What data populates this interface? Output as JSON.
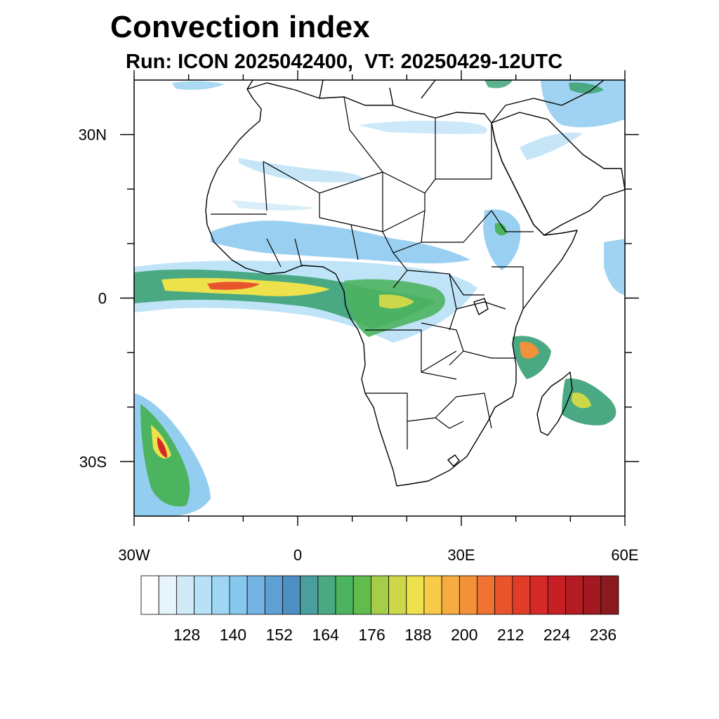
{
  "title": "Convection index",
  "subtitle": "Run: ICON 2025042400,  VT: 20250429-12UTC",
  "map": {
    "region": "Africa",
    "lon_range": [
      -30,
      60
    ],
    "lat_range": [
      -40,
      40
    ],
    "x_ticks": [
      {
        "lon": -30,
        "label": "30W"
      },
      {
        "lon": 0,
        "label": "0"
      },
      {
        "lon": 30,
        "label": "30E"
      },
      {
        "lon": 60,
        "label": "60E"
      }
    ],
    "y_ticks": [
      {
        "lat": 30,
        "label": "30N"
      },
      {
        "lat": 0,
        "label": "0"
      },
      {
        "lat": -30,
        "label": "30S"
      }
    ]
  },
  "colorbar": {
    "colors": [
      "#ffffff",
      "#e8f4fb",
      "#d0eaf8",
      "#b8e0f6",
      "#9fd6f4",
      "#87c8ee",
      "#73b4e2",
      "#5f9fd3",
      "#4f90c4",
      "#4a9ea0",
      "#4aa982",
      "#4cb35f",
      "#61bb4d",
      "#a5cd4a",
      "#ccd84a",
      "#eee24c",
      "#f8cb4a",
      "#f5ad41",
      "#f3903a",
      "#ef7233",
      "#e8552d",
      "#e03c28",
      "#d62a28",
      "#c61f26",
      "#b41c24",
      "#a11921",
      "#8a1a1e"
    ],
    "labels": [
      "128",
      "140",
      "152",
      "164",
      "176",
      "188",
      "200",
      "212",
      "224",
      "236"
    ]
  }
}
